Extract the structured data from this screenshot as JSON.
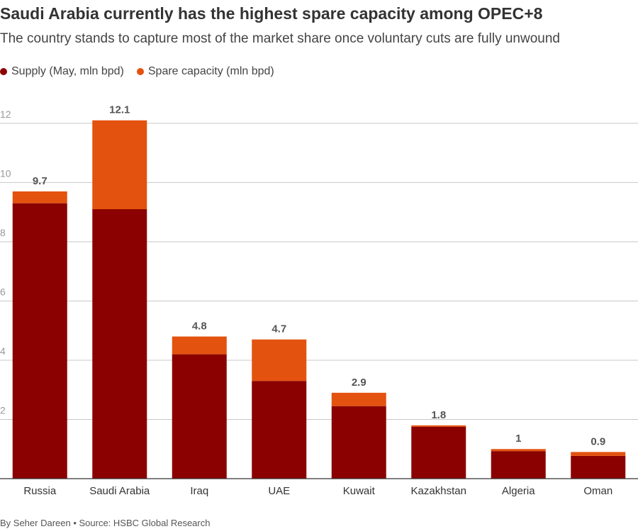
{
  "chart_data": {
    "type": "bar",
    "stacked": true,
    "title": "Saudi Arabia currently has the highest spare capacity among OPEC+8",
    "subtitle": "The country stands to capture most of the market share once voluntary cuts are fully unwound",
    "categories": [
      "Russia",
      "Saudi Arabia",
      "Iraq",
      "UAE",
      "Kuwait",
      "Kazakhstan",
      "Algeria",
      "Oman"
    ],
    "series": [
      {
        "name": "Supply (May, mln bpd)",
        "color": "#8b0000",
        "values": [
          9.3,
          9.1,
          4.2,
          3.3,
          2.45,
          1.75,
          0.93,
          0.77
        ]
      },
      {
        "name": "Spare capacity (mln bpd)",
        "color": "#e3520f",
        "values": [
          0.4,
          3.0,
          0.6,
          1.4,
          0.45,
          0.05,
          0.07,
          0.13
        ]
      }
    ],
    "totals": [
      9.7,
      12.1,
      4.8,
      4.7,
      2.9,
      1.8,
      1,
      0.9
    ],
    "total_labels": [
      "9.7",
      "12.1",
      "4.8",
      "4.7",
      "2.9",
      "1.8",
      "1",
      "0.9"
    ],
    "yticks": [
      2,
      4,
      6,
      8,
      10,
      12
    ],
    "ytick_labels": [
      "2",
      "4",
      "6",
      "8",
      "10",
      "12"
    ],
    "ylim": [
      0,
      12.5
    ],
    "grid": true,
    "legend_position": "top-left"
  },
  "footer": "By Seher Dareen • Source: HSBC Global Research"
}
